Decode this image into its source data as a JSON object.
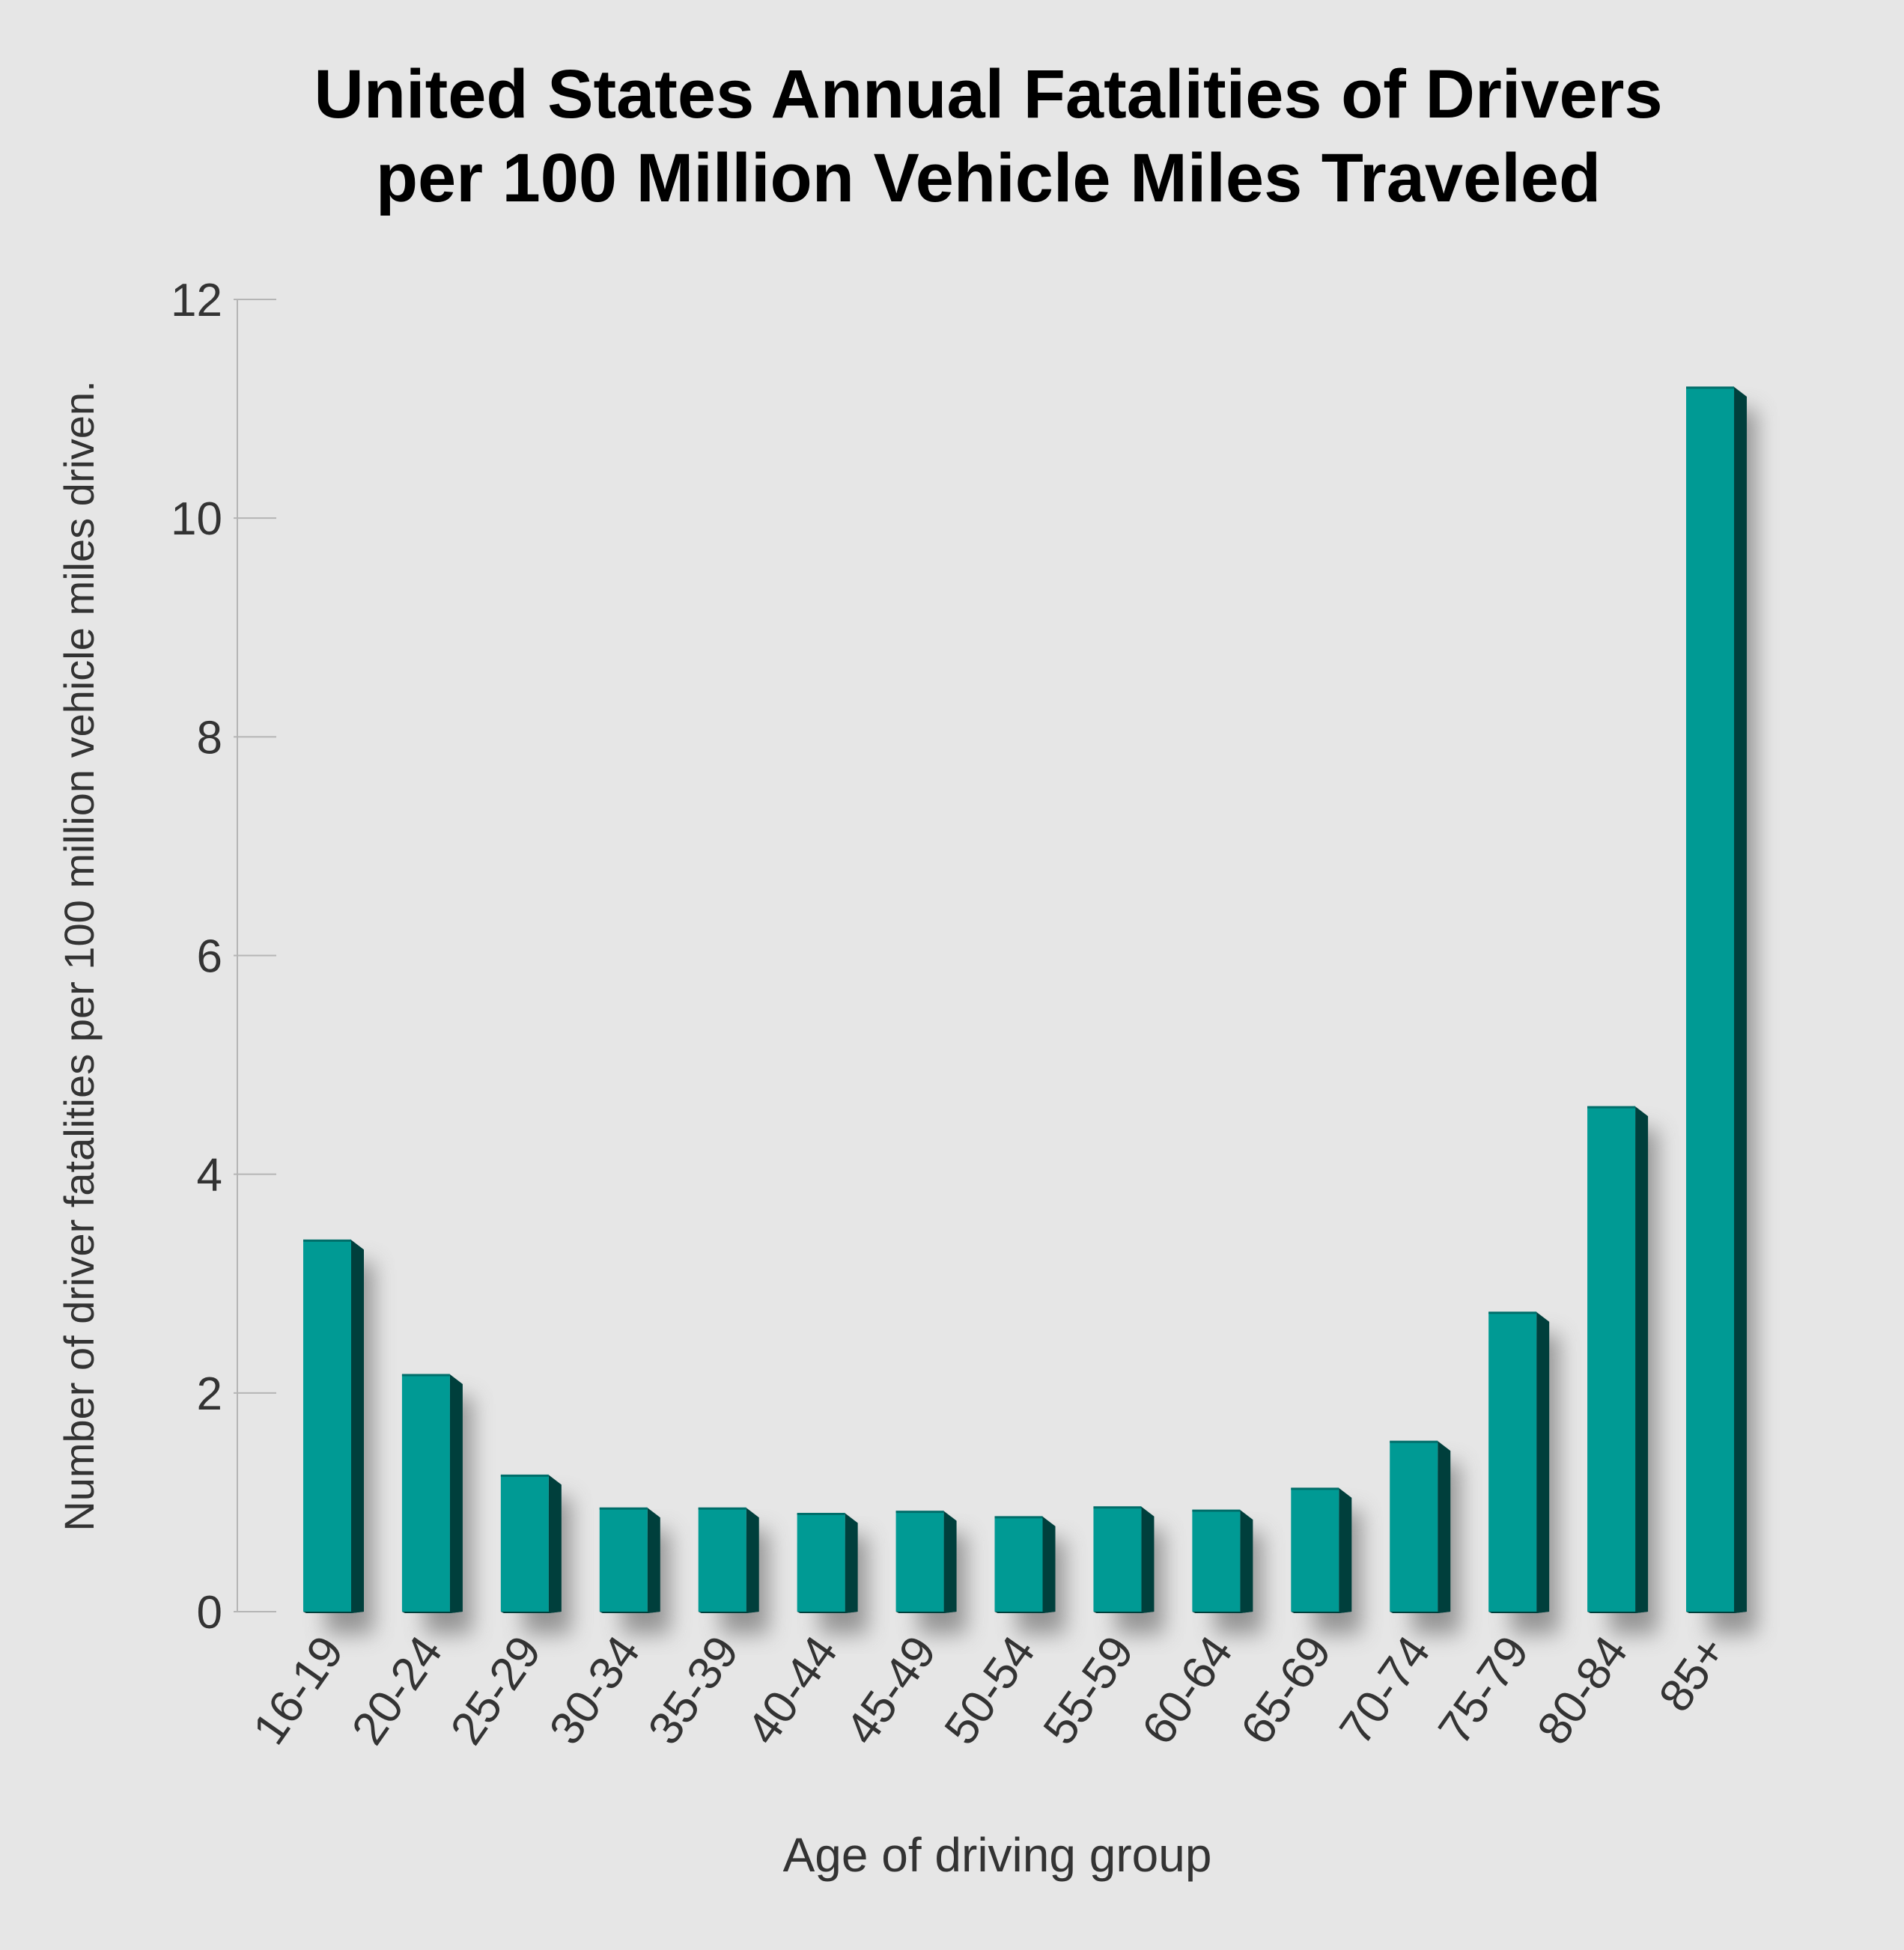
{
  "chart_data": {
    "type": "bar",
    "title_lines": [
      "United States Annual Fatalities of Drivers",
      "per 100 Million Vehicle Miles Traveled"
    ],
    "xlabel": "Age of driving group",
    "ylabel": "Number of driver fatalities per 100 million vehicle miles driven.",
    "ylim": [
      0,
      12
    ],
    "yticks": [
      0,
      2,
      4,
      6,
      8,
      10,
      12
    ],
    "categories": [
      "16-19",
      "20-24",
      "25-29",
      "30-34",
      "35-39",
      "40-44",
      "45-49",
      "50-54",
      "55-59",
      "60-64",
      "65-69",
      "70-74",
      "75-79",
      "80-84",
      "85+"
    ],
    "values": [
      3.4,
      2.17,
      1.25,
      0.95,
      0.95,
      0.9,
      0.92,
      0.87,
      0.96,
      0.93,
      1.13,
      1.56,
      2.74,
      4.62,
      11.2
    ],
    "colors": {
      "bar_front": "#009a94",
      "bar_side": "#003f3c",
      "bar_top": "#006e6a",
      "shadow": "#7a7a7a",
      "axis": "#b5b5b5",
      "text": "#333333",
      "title": "#000000"
    }
  }
}
